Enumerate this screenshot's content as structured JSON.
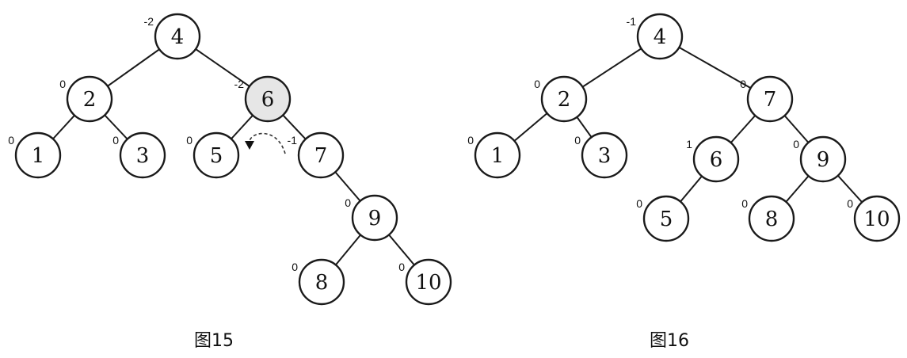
{
  "figures": [
    {
      "caption": "图15",
      "nodes": [
        {
          "key": "4",
          "balance": "-2",
          "highlight": false
        },
        {
          "key": "2",
          "balance": "0",
          "highlight": false
        },
        {
          "key": "6",
          "balance": "-2",
          "highlight": true
        },
        {
          "key": "1",
          "balance": "0",
          "highlight": false
        },
        {
          "key": "3",
          "balance": "0",
          "highlight": false
        },
        {
          "key": "5",
          "balance": "0",
          "highlight": false
        },
        {
          "key": "7",
          "balance": "-1",
          "highlight": false
        },
        {
          "key": "9",
          "balance": "0",
          "highlight": false
        },
        {
          "key": "8",
          "balance": "0",
          "highlight": false
        },
        {
          "key": "10",
          "balance": "0",
          "highlight": false
        }
      ],
      "edges": [
        [
          "4",
          "2"
        ],
        [
          "4",
          "6"
        ],
        [
          "2",
          "1"
        ],
        [
          "2",
          "3"
        ],
        [
          "6",
          "5"
        ],
        [
          "6",
          "7"
        ],
        [
          "7",
          "9"
        ],
        [
          "9",
          "8"
        ],
        [
          "9",
          "10"
        ]
      ],
      "rotation_arrow": {
        "from": "7",
        "to": "6",
        "style": "dashed"
      }
    },
    {
      "caption": "图16",
      "nodes": [
        {
          "key": "4",
          "balance": "-1",
          "highlight": false
        },
        {
          "key": "2",
          "balance": "0",
          "highlight": false
        },
        {
          "key": "7",
          "balance": "0",
          "highlight": false
        },
        {
          "key": "1",
          "balance": "0",
          "highlight": false
        },
        {
          "key": "3",
          "balance": "0",
          "highlight": false
        },
        {
          "key": "6",
          "balance": "1",
          "highlight": false
        },
        {
          "key": "9",
          "balance": "0",
          "highlight": false
        },
        {
          "key": "5",
          "balance": "0",
          "highlight": false
        },
        {
          "key": "8",
          "balance": "0",
          "highlight": false
        },
        {
          "key": "10",
          "balance": "0",
          "highlight": false
        }
      ],
      "edges": [
        [
          "4",
          "2"
        ],
        [
          "4",
          "7"
        ],
        [
          "2",
          "1"
        ],
        [
          "2",
          "3"
        ],
        [
          "7",
          "6"
        ],
        [
          "7",
          "9"
        ],
        [
          "6",
          "5"
        ],
        [
          "9",
          "8"
        ],
        [
          "9",
          "10"
        ]
      ]
    }
  ]
}
